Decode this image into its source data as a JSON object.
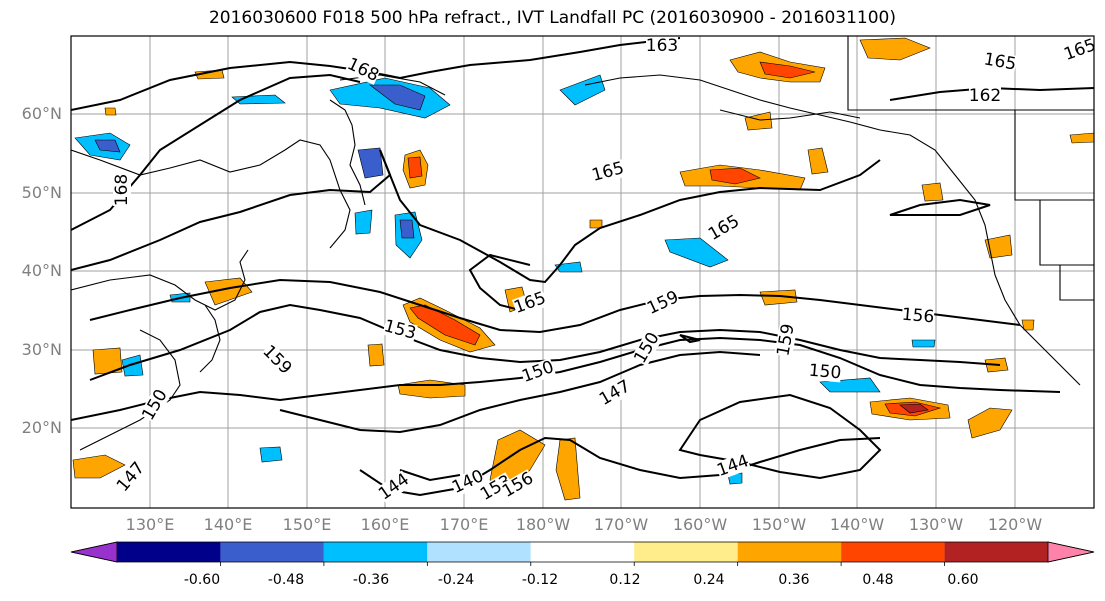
{
  "title": "2016030600 F018 500 hPa refract., IVT Landfall PC (2016030900 - 2016031100)",
  "lat_labels": [
    "60°N",
    "50°N",
    "40°N",
    "30°N",
    "20°N"
  ],
  "lon_labels": [
    "130°E",
    "140°E",
    "150°E",
    "160°E",
    "170°E",
    "180°W",
    "170°W",
    "160°W",
    "150°W",
    "140°W",
    "130°W",
    "120°W"
  ],
  "contour_labels": [
    "168",
    "168",
    "165",
    "163",
    "165",
    "162",
    "165",
    "165",
    "165",
    "156",
    "159",
    "150",
    "153",
    "159",
    "150",
    "147",
    "150",
    "144",
    "140",
    "153",
    "156",
    "144",
    "147",
    "150",
    "159"
  ],
  "colorbar": {
    "colors": [
      "#9932cc",
      "#00008b",
      "#3a5fcd",
      "#00bfff",
      "#b0e2ff",
      "#ffffff",
      "#ffec8b",
      "#ffa500",
      "#ff4500",
      "#b22222",
      "#ff82ab"
    ],
    "tick_labels": [
      "-0.60",
      "-0.48",
      "-0.36",
      "-0.24",
      "-0.12",
      "0.12",
      "0.24",
      "0.36",
      "0.48",
      "0.60"
    ]
  },
  "colors": {
    "grid": "#a0a0a0",
    "contour": "#000000",
    "coast": "#000000",
    "axis_label": "#808080"
  }
}
